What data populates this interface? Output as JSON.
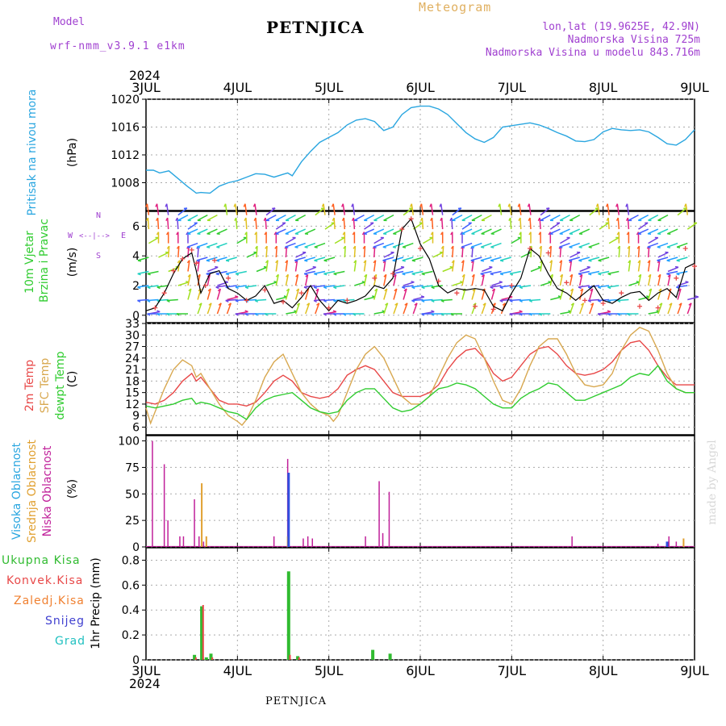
{
  "header": {
    "station": "PETNJICA",
    "title": "Meteogram",
    "model_label": "Model",
    "model": "wrf-nmm_v3.9.1 e1km",
    "lonlat": "lon,lat (19.9625E, 42.9N)",
    "elevation": "Nadmorska Visina 725m",
    "model_elevation": "Nadmorska Visina u modelu 843.716m",
    "year_top": "2024",
    "year_bottom": "2024",
    "footer": "PETNJICA",
    "credit": "made by Angel"
  },
  "colors": {
    "pressure": "#2aa6e0",
    "temp2m": "#e84848",
    "sfc_temp": "#d8a850",
    "dewpoint": "#30cc30",
    "high_cloud": "#3050e0",
    "mid_cloud": "#e0a030",
    "low_cloud": "#c0209a",
    "total_precip": "#30bb30",
    "conv_precip": "#e84848",
    "frozen_precip": "#f08030",
    "snow": "#4040d0",
    "hail": "#20c0c0",
    "wind_line": "#000000",
    "gust_marker": "#e84848"
  },
  "chart_data": [
    {
      "type": "line",
      "id": "pressure",
      "categories": [
        "3JUL",
        "4JUL",
        "5JUL",
        "6JUL",
        "7JUL",
        "8JUL",
        "9JUL"
      ],
      "ylabel": "(hPa)",
      "panel_label": "Pritisak na nivou mora",
      "yticks": [
        1008,
        1012,
        1016,
        1020
      ],
      "ylim": [
        1004,
        1020
      ],
      "series": [
        {
          "x": [
            0,
            0.08,
            0.15,
            0.25,
            0.35,
            0.45,
            0.5,
            0.55,
            0.6,
            0.7,
            0.8,
            0.9,
            1.0,
            1.1,
            1.2,
            1.3,
            1.4,
            1.5,
            1.55,
            1.6,
            1.7,
            1.8,
            1.9,
            2.0,
            2.1,
            2.2,
            2.3,
            2.4,
            2.5,
            2.6,
            2.7,
            2.8,
            2.9,
            3.0,
            3.1,
            3.2,
            3.3,
            3.4,
            3.5,
            3.6,
            3.7,
            3.8,
            3.9,
            4.0,
            4.1,
            4.2,
            4.3,
            4.4,
            4.5,
            4.6,
            4.7,
            4.8,
            4.9,
            5.0,
            5.1,
            5.2,
            5.3,
            5.4,
            5.5,
            5.6,
            5.7,
            5.8,
            5.9,
            6.0
          ],
          "values": [
            1009.8,
            1009.8,
            1009.4,
            1009.7,
            1008.6,
            1007.5,
            1007.0,
            1006.5,
            1006.6,
            1006.5,
            1007.5,
            1008.0,
            1008.3,
            1008.8,
            1009.3,
            1009.2,
            1008.8,
            1009.2,
            1009.4,
            1009.0,
            1011.0,
            1012.5,
            1013.8,
            1014.5,
            1015.2,
            1016.3,
            1017.0,
            1017.2,
            1016.8,
            1015.5,
            1016.0,
            1017.8,
            1018.8,
            1019.0,
            1019.0,
            1018.6,
            1017.8,
            1016.5,
            1015.2,
            1014.3,
            1013.8,
            1014.5,
            1016.0,
            1016.2,
            1016.4,
            1016.6,
            1016.3,
            1015.8,
            1015.2,
            1014.7,
            1014.0,
            1013.9,
            1014.2,
            1015.3,
            1015.8,
            1015.6,
            1015.5,
            1015.6,
            1015.3,
            1014.5,
            1013.6,
            1013.4,
            1014.2,
            1015.6
          ]
        }
      ]
    },
    {
      "type": "line",
      "id": "wind",
      "ylabel": "(m/s)",
      "panel_label": [
        "10m Vjetar",
        "Brzina i Pravac"
      ],
      "compass": {
        "n": "N",
        "s": "S",
        "e": "E",
        "w": "W"
      },
      "yticks": [
        0,
        2,
        4,
        6
      ],
      "ylim": [
        -0.5,
        7
      ],
      "speed": {
        "x": [
          0,
          0.1,
          0.2,
          0.3,
          0.4,
          0.5,
          0.55,
          0.6,
          0.7,
          0.8,
          0.9,
          1.0,
          1.1,
          1.2,
          1.3,
          1.4,
          1.5,
          1.6,
          1.7,
          1.8,
          1.9,
          2.0,
          2.1,
          2.2,
          2.3,
          2.4,
          2.5,
          2.6,
          2.7,
          2.8,
          2.9,
          3.0,
          3.1,
          3.2,
          3.3,
          3.4,
          3.5,
          3.6,
          3.7,
          3.8,
          3.9,
          4.0,
          4.1,
          4.2,
          4.3,
          4.4,
          4.5,
          4.6,
          4.7,
          4.8,
          4.9,
          5.0,
          5.1,
          5.2,
          5.3,
          5.4,
          5.5,
          5.6,
          5.7,
          5.8,
          5.9,
          6.0
        ],
        "values": [
          0.3,
          0.5,
          1.5,
          2.8,
          3.8,
          4.2,
          3.0,
          1.5,
          2.8,
          3.0,
          1.8,
          1.5,
          1.0,
          1.3,
          2.0,
          0.8,
          1.0,
          0.5,
          1.2,
          2.0,
          1.0,
          0.3,
          1.0,
          0.8,
          1.0,
          1.3,
          2.0,
          1.8,
          2.5,
          5.8,
          6.5,
          4.8,
          3.8,
          2.0,
          1.5,
          1.8,
          1.7,
          1.8,
          1.7,
          0.6,
          0.3,
          1.5,
          2.5,
          4.5,
          4.0,
          2.8,
          1.8,
          1.5,
          1.0,
          1.5,
          2.0,
          1.0,
          0.8,
          1.2,
          1.5,
          1.6,
          1.0,
          1.5,
          1.8,
          1.2,
          3.2,
          3.5
        ]
      },
      "gust": {
        "x": [
          0.1,
          0.2,
          0.3,
          0.4,
          0.5,
          0.55,
          0.65,
          0.75,
          0.9,
          1.1,
          1.3,
          1.5,
          1.7,
          2.0,
          2.2,
          2.5,
          2.7,
          2.8,
          2.9,
          3.0,
          3.2,
          3.4,
          3.6,
          3.8,
          4.0,
          4.2,
          4.4,
          4.6,
          4.8,
          5.0,
          5.2,
          5.4,
          5.6,
          5.8,
          5.9,
          6.0
        ],
        "values": [
          0.5,
          1.5,
          3.0,
          3.8,
          4.4,
          3.5,
          2.0,
          3.7,
          2.5,
          1.0,
          1.7,
          0.9,
          1.5,
          0.5,
          1.0,
          2.5,
          2.8,
          5.8,
          6.5,
          4.5,
          2.3,
          1.5,
          0.6,
          0.4,
          2.0,
          4.5,
          4.2,
          2.2,
          1.0,
          0.8,
          1.5,
          0.6,
          0.5,
          2.5,
          4.5,
          3.3
        ]
      }
    },
    {
      "type": "line",
      "id": "temperature",
      "ylabel": "(C)",
      "panel_label": [
        "2m Temp",
        "SFC Temp",
        "dewpt Temp"
      ],
      "yticks": [
        6,
        9,
        12,
        15,
        18,
        21,
        24,
        27,
        30,
        33
      ],
      "ylim": [
        4,
        33
      ],
      "series": [
        {
          "id": "temp2m",
          "x": [
            0,
            0.1,
            0.2,
            0.3,
            0.4,
            0.5,
            0.55,
            0.6,
            0.7,
            0.8,
            0.9,
            1.0,
            1.1,
            1.2,
            1.3,
            1.4,
            1.5,
            1.6,
            1.7,
            1.8,
            1.9,
            2.0,
            2.1,
            2.2,
            2.3,
            2.4,
            2.5,
            2.6,
            2.7,
            2.8,
            2.9,
            3.0,
            3.1,
            3.2,
            3.3,
            3.4,
            3.5,
            3.6,
            3.7,
            3.8,
            3.9,
            4.0,
            4.1,
            4.2,
            4.3,
            4.4,
            4.5,
            4.6,
            4.7,
            4.8,
            4.9,
            5.0,
            5.1,
            5.2,
            5.3,
            5.4,
            5.5,
            5.6,
            5.7,
            5.8,
            5.9,
            6.0
          ],
          "values": [
            12.5,
            12,
            13,
            15,
            18,
            20,
            18,
            19,
            16,
            13,
            12,
            12,
            11.5,
            12.5,
            15,
            18,
            19.5,
            18,
            15,
            14,
            13.5,
            14,
            16,
            19.5,
            21,
            22,
            21,
            18,
            15,
            14,
            14,
            14,
            15,
            17,
            21,
            24,
            26,
            26.5,
            24,
            20,
            18,
            19,
            22,
            25,
            26.5,
            27,
            25,
            22,
            20,
            19.5,
            20,
            21,
            23,
            26,
            28,
            28.5,
            26,
            22,
            19,
            17,
            17,
            17
          ]
        },
        {
          "id": "sfc_temp",
          "x": [
            0,
            0.05,
            0.1,
            0.2,
            0.3,
            0.4,
            0.5,
            0.55,
            0.6,
            0.7,
            0.8,
            0.9,
            1.0,
            1.05,
            1.1,
            1.2,
            1.3,
            1.4,
            1.5,
            1.6,
            1.7,
            1.8,
            1.9,
            2.0,
            2.05,
            2.1,
            2.2,
            2.3,
            2.4,
            2.5,
            2.6,
            2.7,
            2.8,
            2.9,
            3.0,
            3.1,
            3.2,
            3.3,
            3.4,
            3.5,
            3.6,
            3.7,
            3.8,
            3.9,
            4.0,
            4.1,
            4.2,
            4.3,
            4.4,
            4.5,
            4.6,
            4.7,
            4.8,
            4.9,
            5.0,
            5.1,
            5.2,
            5.3,
            5.4,
            5.5,
            5.6,
            5.7,
            5.8,
            5.9,
            6.0
          ],
          "values": [
            11,
            7,
            10,
            16,
            21,
            23.5,
            22,
            19,
            20,
            16,
            12,
            9,
            7.5,
            6.5,
            8,
            13,
            19,
            23,
            25,
            20,
            15,
            12,
            10,
            9,
            7.5,
            9,
            15,
            21,
            25,
            27,
            24,
            19,
            14,
            12,
            12,
            14,
            19,
            24,
            28,
            30,
            29,
            24,
            18,
            13,
            12,
            16,
            22,
            27,
            29,
            29,
            25,
            20,
            17,
            16.5,
            17,
            20,
            26,
            30,
            32,
            31,
            26,
            20,
            16,
            15,
            15
          ]
        },
        {
          "id": "dewpoint",
          "x": [
            0,
            0.1,
            0.2,
            0.3,
            0.4,
            0.5,
            0.55,
            0.6,
            0.7,
            0.8,
            0.9,
            1.0,
            1.1,
            1.2,
            1.3,
            1.4,
            1.5,
            1.6,
            1.7,
            1.8,
            1.9,
            2.0,
            2.1,
            2.2,
            2.3,
            2.4,
            2.5,
            2.6,
            2.7,
            2.8,
            2.9,
            3.0,
            3.1,
            3.2,
            3.3,
            3.4,
            3.5,
            3.6,
            3.7,
            3.8,
            3.9,
            4.0,
            4.1,
            4.2,
            4.3,
            4.4,
            4.5,
            4.6,
            4.7,
            4.8,
            4.9,
            5.0,
            5.1,
            5.2,
            5.3,
            5.4,
            5.5,
            5.6,
            5.7,
            5.8,
            5.9,
            6.0
          ],
          "values": [
            11.5,
            11,
            11.5,
            12,
            13,
            13.5,
            12,
            12.5,
            12,
            11,
            10,
            9.5,
            8,
            11,
            13,
            14,
            14.5,
            15,
            13,
            11,
            10,
            9.5,
            10,
            13,
            15,
            16,
            16,
            13.5,
            11,
            10,
            10.5,
            12,
            14,
            16,
            16.5,
            17.5,
            17,
            16,
            14,
            12,
            11,
            11,
            13.5,
            15,
            16,
            17.5,
            17,
            15,
            13,
            13,
            14,
            15,
            16,
            17,
            19,
            20,
            19.5,
            22,
            18,
            16,
            15,
            15
          ]
        }
      ]
    },
    {
      "type": "bar",
      "id": "clouds",
      "ylabel": "(%)",
      "panel_label": [
        "Visoka Oblacnost",
        "Srednja Oblacnost",
        "Niska Oblacnost"
      ],
      "yticks": [
        0,
        25,
        50,
        75,
        100
      ],
      "ylim": [
        0,
        105
      ],
      "series": [
        {
          "id": "low_cloud",
          "x": [
            0.07,
            0.2,
            0.24,
            0.37,
            0.41,
            0.53,
            0.58,
            0.63,
            1.4,
            1.55,
            1.72,
            1.77,
            1.82,
            2.4,
            2.55,
            2.59,
            2.66,
            4.66,
            5.6,
            5.72,
            5.8
          ],
          "values": [
            100,
            78,
            25,
            10,
            10,
            45,
            10,
            5,
            10,
            83,
            8,
            10,
            8,
            10,
            62,
            13,
            52,
            10,
            3,
            10,
            5
          ]
        },
        {
          "id": "mid_cloud",
          "x": [
            0.61,
            0.66,
            1.55,
            5.88
          ],
          "values": [
            60,
            10,
            10,
            8
          ]
        },
        {
          "id": "high_cloud",
          "x": [
            1.56,
            5.7
          ],
          "values": [
            70,
            5
          ]
        }
      ],
      "baseline_value": 0.5
    },
    {
      "type": "bar",
      "id": "precip",
      "ylabel": "1hr Precip (mm)",
      "panel_label": [
        "Ukupna Kisa",
        "Konvek.Kisa",
        "Zaledj.Kisa",
        "Snijeg",
        "Grad"
      ],
      "yticks": [
        0,
        0.2,
        0.4,
        0.6,
        0.8
      ],
      "ylim": [
        0,
        0.9
      ],
      "xticks": [
        "3JUL",
        "4JUL",
        "5JUL",
        "6JUL",
        "7JUL",
        "8JUL",
        "9JUL"
      ],
      "series": [
        {
          "id": "total_precip",
          "x": [
            0.53,
            0.61,
            0.66,
            0.71,
            1.56,
            1.66,
            2.48,
            2.67
          ],
          "values": [
            0.04,
            0.43,
            0.02,
            0.05,
            0.71,
            0.03,
            0.08,
            0.05
          ]
        },
        {
          "id": "conv_precip",
          "x": [
            0.545,
            0.625,
            0.725,
            1.575,
            1.675
          ],
          "values": [
            0.02,
            0.44,
            0.02,
            0.04,
            0.02
          ]
        }
      ]
    }
  ]
}
